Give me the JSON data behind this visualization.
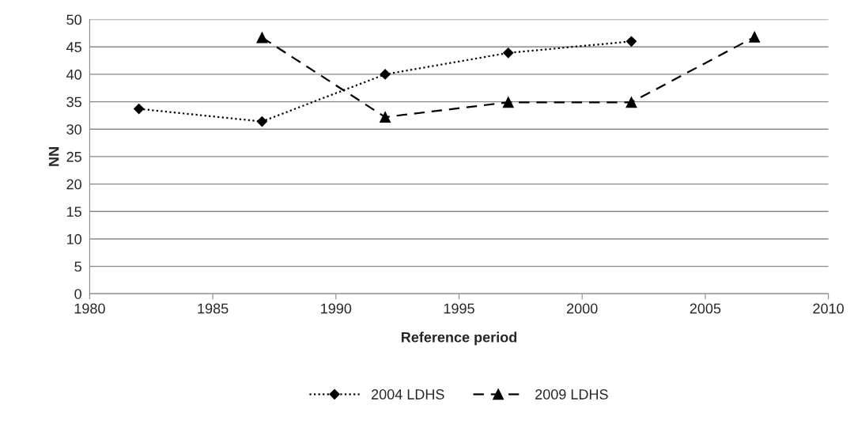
{
  "chart_data": {
    "type": "line",
    "xlabel": "Reference period",
    "ylabel": "NN",
    "x": [
      1982,
      1987,
      1992,
      1997,
      2002,
      2007
    ],
    "series": [
      {
        "name": "2004 LDHS",
        "color": "#000000",
        "marker": "diamond",
        "line_style": "dotted",
        "values": [
          33.7,
          31.4,
          40.0,
          43.9,
          46.0,
          null
        ]
      },
      {
        "name": "2009 LDHS",
        "color": "#000000",
        "marker": "triangle",
        "line_style": "dashed",
        "values": [
          null,
          46.7,
          32.2,
          34.9,
          34.9,
          46.8
        ]
      }
    ],
    "xlim": [
      1980,
      2010
    ],
    "xticks": [
      1980,
      1985,
      1990,
      1995,
      2000,
      2005,
      2010
    ],
    "ylim": [
      0,
      50
    ],
    "yticks": [
      0,
      5,
      10,
      15,
      20,
      25,
      30,
      35,
      40,
      45,
      50
    ],
    "grid": "y",
    "legend": "bottom"
  }
}
